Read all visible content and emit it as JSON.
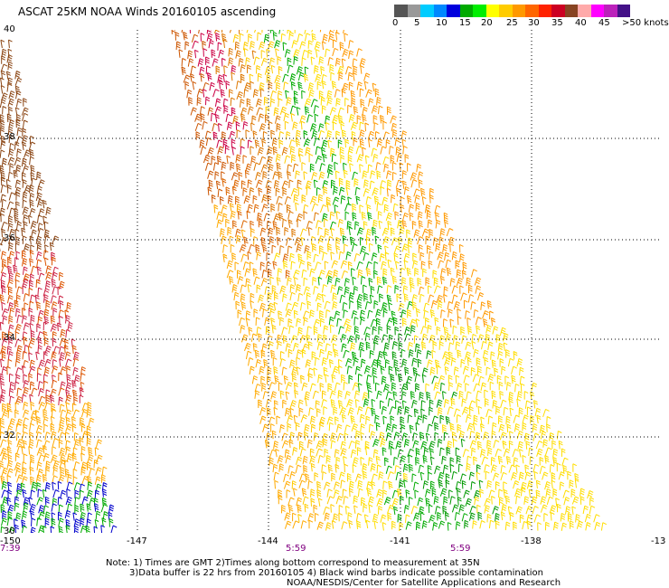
{
  "title": "ASCAT 25KM NOAA Winds 20160105 ascending",
  "legend": {
    "colors": [
      "#555555",
      "#999999",
      "#00ccff",
      "#0088ff",
      "#0000dd",
      "#00aa00",
      "#00ee00",
      "#ffff00",
      "#ffcc00",
      "#ff9900",
      "#ff6600",
      "#ff2200",
      "#cc0022",
      "#884422",
      "#ffaaaa",
      "#ff00ff",
      "#bb22bb",
      "#441188"
    ],
    "labels": [
      "0",
      "5",
      "10",
      "15",
      "20",
      "25",
      "30",
      "35",
      "40",
      "45",
      ">50 knots"
    ]
  },
  "axes": {
    "lon_labels": [
      "-150",
      "-147",
      "-144",
      "-141",
      "-138",
      "-13"
    ],
    "lat_labels": [
      "40",
      "38",
      "36",
      "34",
      "32",
      "30"
    ],
    "time_labels": [
      "7:39",
      "5:59",
      "5:59"
    ]
  },
  "notes": {
    "line1": "Note: 1) Times are GMT 2)Times along bottom correspond to measurement at 35N",
    "line2": "3)Data buffer is 22 hrs from 20160105 4) Black wind barbs indicate possible contamination",
    "line3": "NOAA/NESDIS/Center for Satellite Applications and Research"
  }
}
